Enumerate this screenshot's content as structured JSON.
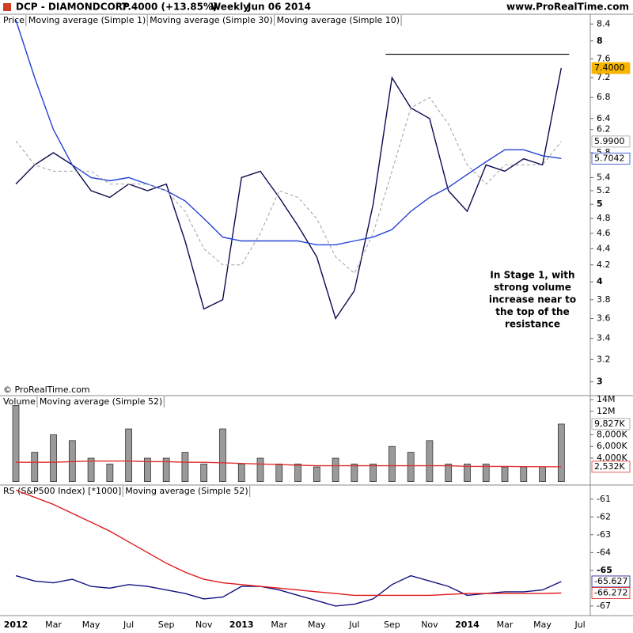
{
  "header": {
    "symbol": "DCP - DIAMONDCORP",
    "quote": "7.4000 (+13.85%)",
    "period": "Weekly",
    "date": "Jun 06 2014",
    "site": "www.ProRealTime.com"
  },
  "chart_data": [
    {
      "type": "line",
      "label": "Price",
      "log_scale": true,
      "ylim": [
        2.95,
        8.6
      ],
      "yticks": [
        3,
        3.2,
        3.4,
        3.6,
        3.8,
        4,
        4.2,
        4.4,
        4.6,
        4.8,
        5,
        5.2,
        5.4,
        5.8,
        6.2,
        6.4,
        6.8,
        7.2,
        7.6,
        8,
        8.4
      ],
      "resistance": 7.7,
      "annotation": [
        "In Stage 1, with",
        "strong volume",
        "increase near to",
        "the top of the",
        "resistance"
      ],
      "copyright": "© ProRealTime.com",
      "series": [
        {
          "name": "Moving average (Simple 1)",
          "color": "#0a0a50",
          "dash": false,
          "values": [
            5.3,
            5.6,
            5.8,
            5.6,
            5.2,
            5.1,
            5.3,
            5.2,
            5.3,
            4.5,
            3.7,
            3.8,
            5.4,
            5.5,
            5.1,
            4.7,
            4.3,
            3.6,
            3.9,
            5.0,
            7.2,
            6.6,
            6.4,
            5.2,
            4.9,
            5.6,
            5.5,
            5.7,
            5.6,
            7.4,
            null
          ],
          "value_labels": [
            null,
            null,
            null,
            null,
            null,
            null,
            null,
            null,
            null,
            null,
            null,
            null,
            null,
            null,
            null,
            null,
            null,
            null,
            null,
            null,
            null,
            null,
            null,
            null,
            null,
            null,
            null,
            null,
            null,
            "7.4000",
            null
          ],
          "label_bg": "#f7b500"
        },
        {
          "name": "Moving average (Simple 30)",
          "color": "#2342d6",
          "dash": false,
          "values": [
            8.5,
            7.2,
            6.2,
            5.6,
            5.4,
            5.35,
            5.4,
            5.3,
            5.2,
            5.05,
            4.8,
            4.55,
            4.5,
            4.5,
            4.5,
            4.5,
            4.45,
            4.45,
            4.5,
            4.55,
            4.65,
            4.9,
            5.1,
            5.25,
            5.45,
            5.65,
            5.85,
            5.85,
            5.75,
            5.7042,
            null
          ],
          "value_labels": [
            null,
            null,
            null,
            null,
            null,
            null,
            null,
            null,
            null,
            null,
            null,
            null,
            null,
            null,
            null,
            null,
            null,
            null,
            null,
            null,
            null,
            null,
            null,
            null,
            null,
            null,
            null,
            null,
            null,
            "5.7042",
            null
          ]
        },
        {
          "name": "Moving average (Simple 10)",
          "color": "#a0a0a0",
          "dash": true,
          "values": [
            6.0,
            5.6,
            5.5,
            5.5,
            5.5,
            5.3,
            5.3,
            5.3,
            5.2,
            4.9,
            4.4,
            4.2,
            4.2,
            4.6,
            5.2,
            5.1,
            4.8,
            4.3,
            4.1,
            4.6,
            5.5,
            6.6,
            6.8,
            6.3,
            5.6,
            5.3,
            5.6,
            5.6,
            5.6,
            5.99,
            null
          ],
          "value_labels": [
            null,
            null,
            null,
            null,
            null,
            null,
            null,
            null,
            null,
            null,
            null,
            null,
            null,
            null,
            null,
            null,
            null,
            null,
            null,
            null,
            null,
            null,
            null,
            null,
            null,
            null,
            null,
            null,
            null,
            "5.9900",
            null
          ]
        }
      ]
    },
    {
      "type": "bar",
      "ylim": [
        0,
        14600000
      ],
      "yticks": [
        {
          "value": 4000000,
          "label": "4,000K"
        },
        {
          "value": 6000000,
          "label": "6,000K"
        },
        {
          "value": 8000000,
          "label": "8,000K"
        },
        {
          "value": 12000000,
          "label": "12M"
        },
        {
          "value": 14000000,
          "label": "14M"
        }
      ],
      "series": [
        {
          "name": "Volume",
          "color": "#9a9a9a",
          "values": [
            13000000,
            5000000,
            8000000,
            7000000,
            4000000,
            3000000,
            9000000,
            4000000,
            4000000,
            5000000,
            3000000,
            9000000,
            3000000,
            4000000,
            3000000,
            3000000,
            2500000,
            4000000,
            3000000,
            3000000,
            6000000,
            5000000,
            7000000,
            3000000,
            3000000,
            3000000,
            2500000,
            2500000,
            2500000,
            9827000,
            null
          ],
          "value_labels": [
            null,
            null,
            null,
            null,
            null,
            null,
            null,
            null,
            null,
            null,
            null,
            null,
            null,
            null,
            null,
            null,
            null,
            null,
            null,
            null,
            null,
            null,
            null,
            null,
            null,
            null,
            null,
            null,
            null,
            "9,827K",
            null
          ]
        },
        {
          "name": "Moving average (Simple 52)",
          "type": "line",
          "color": "#e03030",
          "values": [
            3300000,
            3300000,
            3300000,
            3400000,
            3500000,
            3500000,
            3500000,
            3400000,
            3400000,
            3300000,
            3300000,
            3200000,
            3100000,
            3000000,
            2900000,
            2800000,
            2700000,
            2700000,
            2700000,
            2700000,
            2700000,
            2700000,
            2700000,
            2700000,
            2600000,
            2600000,
            2600000,
            2550000,
            2540000,
            2532000,
            null
          ],
          "value_labels": [
            null,
            null,
            null,
            null,
            null,
            null,
            null,
            null,
            null,
            null,
            null,
            null,
            null,
            null,
            null,
            null,
            null,
            null,
            null,
            null,
            null,
            null,
            null,
            null,
            null,
            null,
            null,
            null,
            null,
            "2,532K",
            null
          ]
        }
      ]
    },
    {
      "type": "line",
      "ylim": [
        -67.45,
        -60.3
      ],
      "yticks": [
        -67,
        -65,
        -64,
        -63,
        -62,
        -61
      ],
      "categories": [
        "2012",
        null,
        "Mar",
        null,
        "May",
        null,
        "Jul",
        null,
        "Sep",
        null,
        "Nov",
        null,
        "2013",
        null,
        "Mar",
        null,
        "May",
        null,
        "Jul",
        null,
        "Sep",
        null,
        "Nov",
        null,
        "2014",
        null,
        "Mar",
        null,
        "May",
        null,
        "Jul"
      ],
      "series": [
        {
          "name": "RS (S&P500 Index) [*1000]",
          "color": "#101080",
          "dash": false,
          "values": [
            -65.3,
            -65.6,
            -65.7,
            -65.5,
            -65.9,
            -66.0,
            -65.8,
            -65.9,
            -66.1,
            -66.3,
            -66.6,
            -66.5,
            -65.9,
            -65.9,
            -66.1,
            -66.4,
            -66.7,
            -67.0,
            -66.9,
            -66.6,
            -65.8,
            -65.3,
            -65.6,
            -65.9,
            -66.4,
            -66.3,
            -66.2,
            -66.2,
            -66.1,
            -65.627,
            null
          ],
          "value_labels": [
            null,
            null,
            null,
            null,
            null,
            null,
            null,
            null,
            null,
            null,
            null,
            null,
            null,
            null,
            null,
            null,
            null,
            null,
            null,
            null,
            null,
            null,
            null,
            null,
            null,
            null,
            null,
            null,
            null,
            "-65.627",
            null
          ]
        },
        {
          "name": "Moving average (Simple 52)",
          "color": "#e01818",
          "dash": false,
          "values": [
            -60.5,
            -60.9,
            -61.3,
            -61.8,
            -62.3,
            -62.8,
            -63.4,
            -64.0,
            -64.6,
            -65.1,
            -65.5,
            -65.7,
            -65.8,
            -65.9,
            -66.0,
            -66.1,
            -66.2,
            -66.3,
            -66.4,
            -66.4,
            -66.4,
            -66.4,
            -66.4,
            -66.35,
            -66.3,
            -66.3,
            -66.3,
            -66.3,
            -66.3,
            -66.272,
            null
          ],
          "value_labels": [
            null,
            null,
            null,
            null,
            null,
            null,
            null,
            null,
            null,
            null,
            null,
            null,
            null,
            null,
            null,
            null,
            null,
            null,
            null,
            null,
            null,
            null,
            null,
            null,
            null,
            null,
            null,
            null,
            null,
            "-66.272",
            null
          ]
        }
      ]
    }
  ]
}
